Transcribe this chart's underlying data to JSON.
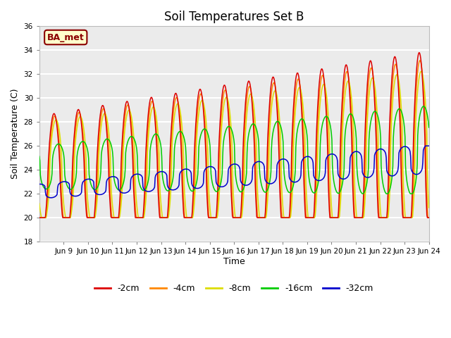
{
  "title": "Soil Temperatures Set B",
  "xlabel": "Time",
  "ylabel": "Soil Temperature (C)",
  "ylim": [
    18,
    36
  ],
  "yticks": [
    18,
    20,
    22,
    24,
    26,
    28,
    30,
    32,
    34,
    36
  ],
  "bg_color": "#ebebeb",
  "grid_color": "white",
  "label_box": "BA_met",
  "legend_labels": [
    "-2cm",
    "-4cm",
    "-8cm",
    "-16cm",
    "-32cm"
  ],
  "line_colors": [
    "#dd0000",
    "#ff8800",
    "#dddd00",
    "#00cc00",
    "#0000cc"
  ],
  "xtick_labels": [
    "Jun 9",
    "Jun 10",
    "Jun 11",
    "Jun 12",
    "Jun 13",
    "Jun 14",
    "Jun 15",
    "Jun 16",
    "Jun 17",
    "Jun 18",
    "Jun 19",
    "Jun 20",
    "Jun 21",
    "Jun 22",
    "Jun 23",
    "Jun 24"
  ],
  "n_points": 768
}
